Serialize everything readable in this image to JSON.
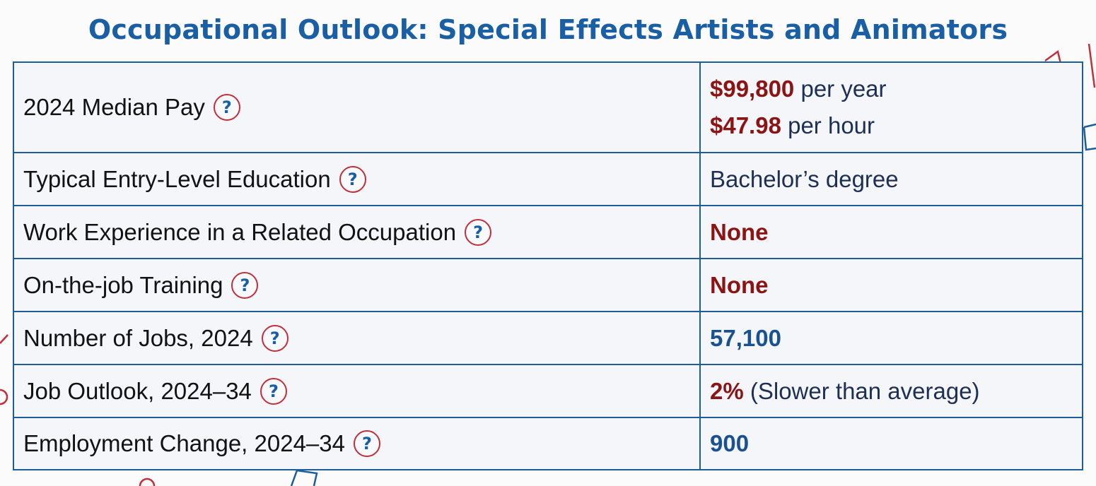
{
  "title": "Occupational Outlook: Special Effects Artists and Animators",
  "colors": {
    "title": "#1a5ea3",
    "border": "#1d5d9b",
    "highlight_red": "#8b1515",
    "highlight_blue": "#1a5191",
    "help_icon_ring": "#c0303a"
  },
  "help_icon": {
    "glyph": "?",
    "icon_name": "question-circle-icon"
  },
  "rows": [
    {
      "label": "2024 Median Pay",
      "annual": "$99,800",
      "annual_suffix": " per year",
      "hourly": "$47.98",
      "hourly_suffix": " per hour"
    },
    {
      "label": "Typical Entry-Level Education",
      "value": "Bachelor’s degree"
    },
    {
      "label": "Work Experience in a Related Occupation",
      "value": "None"
    },
    {
      "label": "On-the-job Training",
      "value": "None"
    },
    {
      "label": "Number of Jobs, 2024",
      "value": "57,100"
    },
    {
      "label": "Job Outlook, 2024–34",
      "value": "2%",
      "value_suffix": " (Slower than average)"
    },
    {
      "label": "Employment Change, 2024–34",
      "value": "900"
    }
  ]
}
